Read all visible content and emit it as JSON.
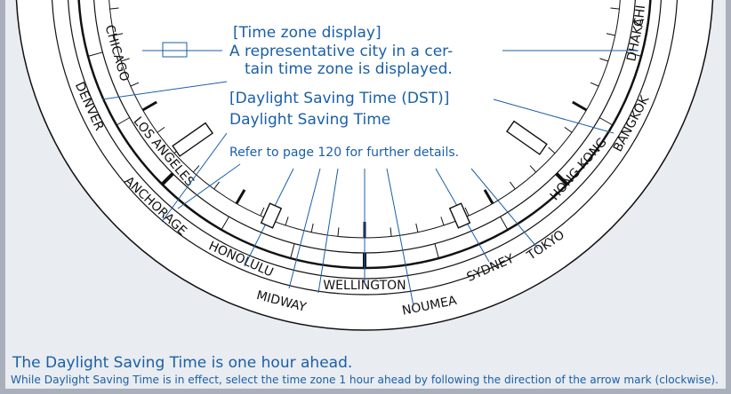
{
  "callouts": {
    "time_zone": {
      "heading": "[Time zone display]",
      "lines": [
        "A representative city in a cer-",
        "tain time zone is displayed."
      ]
    },
    "dst": {
      "heading": "[Daylight Saving Time (DST)]",
      "lines": [
        "Daylight Saving Time"
      ],
      "note": "Refer to page 120 for further details."
    }
  },
  "cities": [
    "CHICAGO",
    "DENVER",
    "LOS ANGELES",
    "ANCHORAGE",
    "HONOLULU",
    "MIDWAY",
    "WELLINGTON",
    "NOUMEA",
    "SYDNEY",
    "TOKYO",
    "HONG KONG",
    "BANGKOK",
    "DHAKA",
    "CHI"
  ],
  "footer": {
    "heading": "The Daylight Saving Time is one hour ahead.",
    "note": "While Daylight Saving Time is in effect, select the time zone 1 hour ahead by following the direction of the arrow mark (clockwise)."
  }
}
